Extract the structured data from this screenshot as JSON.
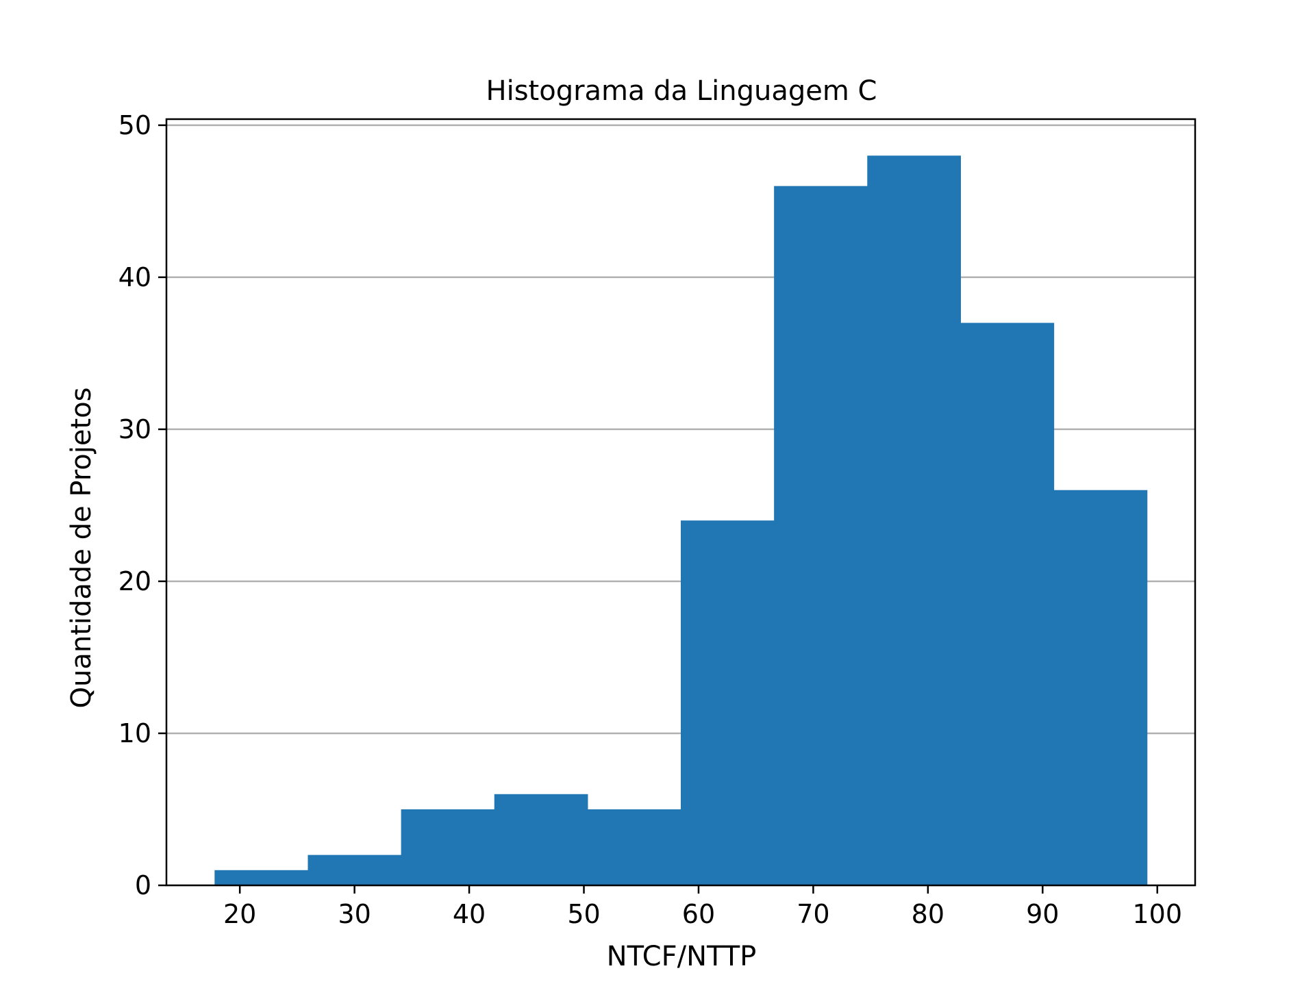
{
  "chart_data": {
    "type": "bar",
    "title": "Histograma da Linguagem C",
    "xlabel": "NTCF/NTTP",
    "ylabel": "Quantidade de Projetos",
    "bin_edges": [
      17.8,
      25.93,
      34.06,
      42.19,
      50.32,
      58.45,
      66.58,
      74.71,
      82.84,
      90.97,
      99.1
    ],
    "values": [
      1,
      2,
      5,
      6,
      5,
      24,
      46,
      48,
      37,
      26
    ],
    "xlim": [
      13.6,
      103.3
    ],
    "ylim": [
      0,
      50.4
    ],
    "xticks": [
      "20",
      "30",
      "40",
      "50",
      "60",
      "70",
      "80",
      "90",
      "100"
    ],
    "yticks": [
      "0",
      "10",
      "20",
      "30",
      "40",
      "50"
    ],
    "grid": "horizontal",
    "bar_color": "#2077b4",
    "grid_color": "#b0b0b0"
  }
}
